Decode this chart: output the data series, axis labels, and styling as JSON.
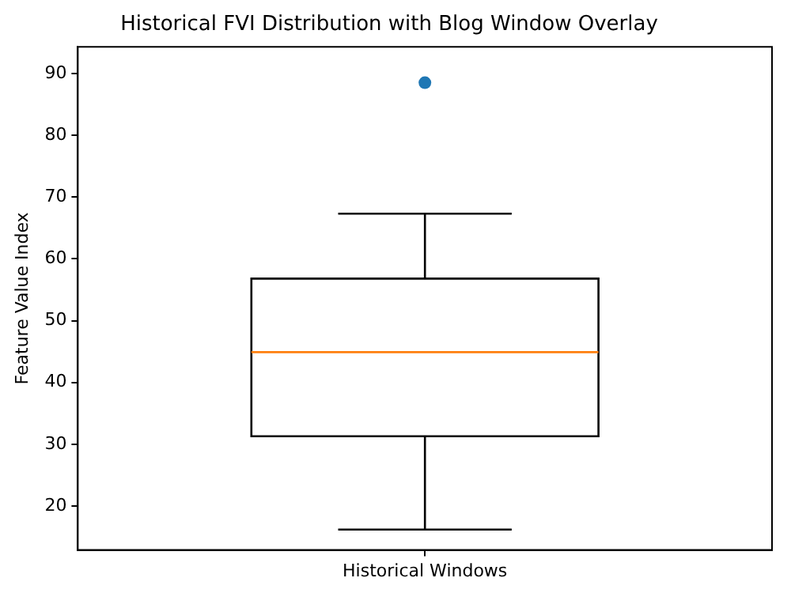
{
  "chart_data": {
    "type": "box",
    "title": "Historical FVI Distribution with Blog Window Overlay",
    "ylabel": "Feature Value Index",
    "categories": [
      "Historical Windows"
    ],
    "series": [
      {
        "type": "box",
        "color": "#000000",
        "boxes": [
          {
            "low": 16.2,
            "q1": 31.3,
            "median": 44.9,
            "q3": 56.8,
            "high": 67.3
          }
        ]
      },
      {
        "type": "scatter",
        "color": "#1f77b4",
        "x": [
          "Historical Windows"
        ],
        "values": [
          88.5
        ]
      }
    ],
    "ylim": [
      12.9,
      94.3
    ],
    "yticks": [
      20,
      30,
      40,
      50,
      60,
      70,
      80,
      90
    ],
    "grid": false,
    "legend": false,
    "marker": "circle"
  }
}
